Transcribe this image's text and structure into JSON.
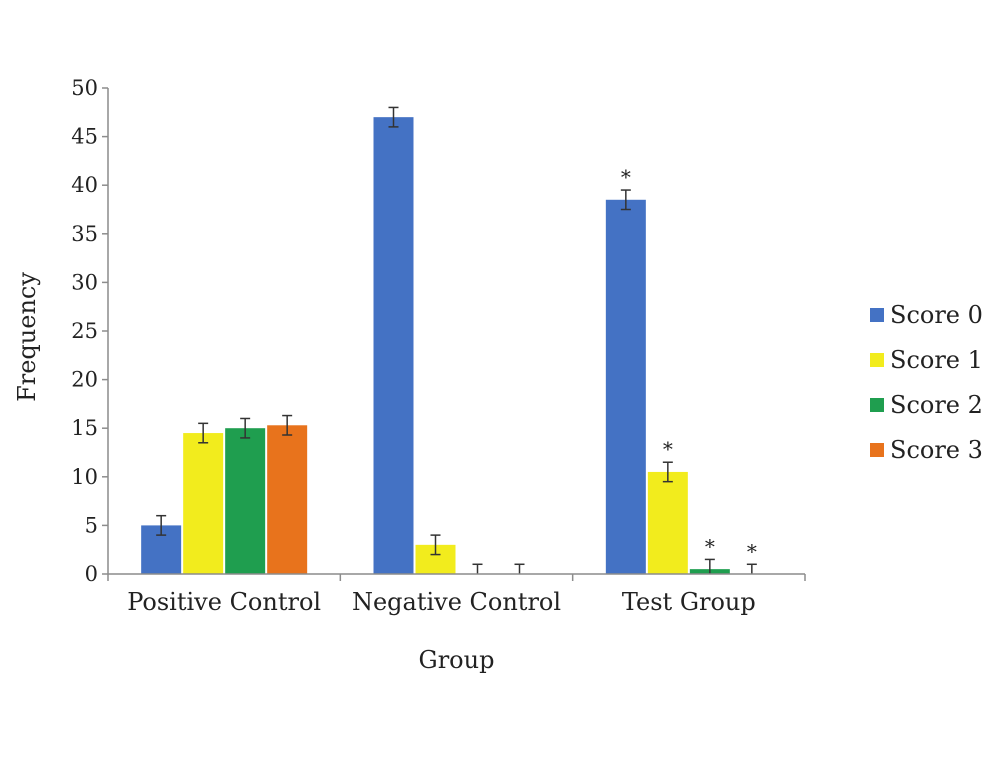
{
  "chart_data": {
    "type": "bar",
    "title": "",
    "xlabel": "Group",
    "ylabel": "Frequency",
    "ylim": [
      0,
      50
    ],
    "yticks": [
      0,
      5,
      10,
      15,
      20,
      25,
      30,
      35,
      40,
      45,
      50
    ],
    "categories": [
      "Positive Control",
      "Negative Control",
      "Test Group"
    ],
    "series": [
      {
        "name": "Score 0",
        "color": "#4472c4",
        "values": [
          5,
          47,
          38.5
        ],
        "errors": [
          1,
          1,
          1
        ],
        "significant": [
          false,
          false,
          true
        ]
      },
      {
        "name": "Score 1",
        "color": "#f2ec1d",
        "values": [
          14.5,
          3,
          10.5
        ],
        "errors": [
          1,
          1,
          1
        ],
        "significant": [
          false,
          false,
          true
        ]
      },
      {
        "name": "Score 2",
        "color": "#1f9e4f",
        "values": [
          15,
          0,
          0.5
        ],
        "errors": [
          1,
          1,
          1
        ],
        "significant": [
          false,
          false,
          true
        ]
      },
      {
        "name": "Score 3",
        "color": "#e8731c",
        "values": [
          15.3,
          0,
          0
        ],
        "errors": [
          1,
          1,
          1
        ],
        "significant": [
          false,
          false,
          true
        ]
      }
    ],
    "significance_marker": "*",
    "error_bars": true,
    "grid": false,
    "legend_position": "right"
  }
}
